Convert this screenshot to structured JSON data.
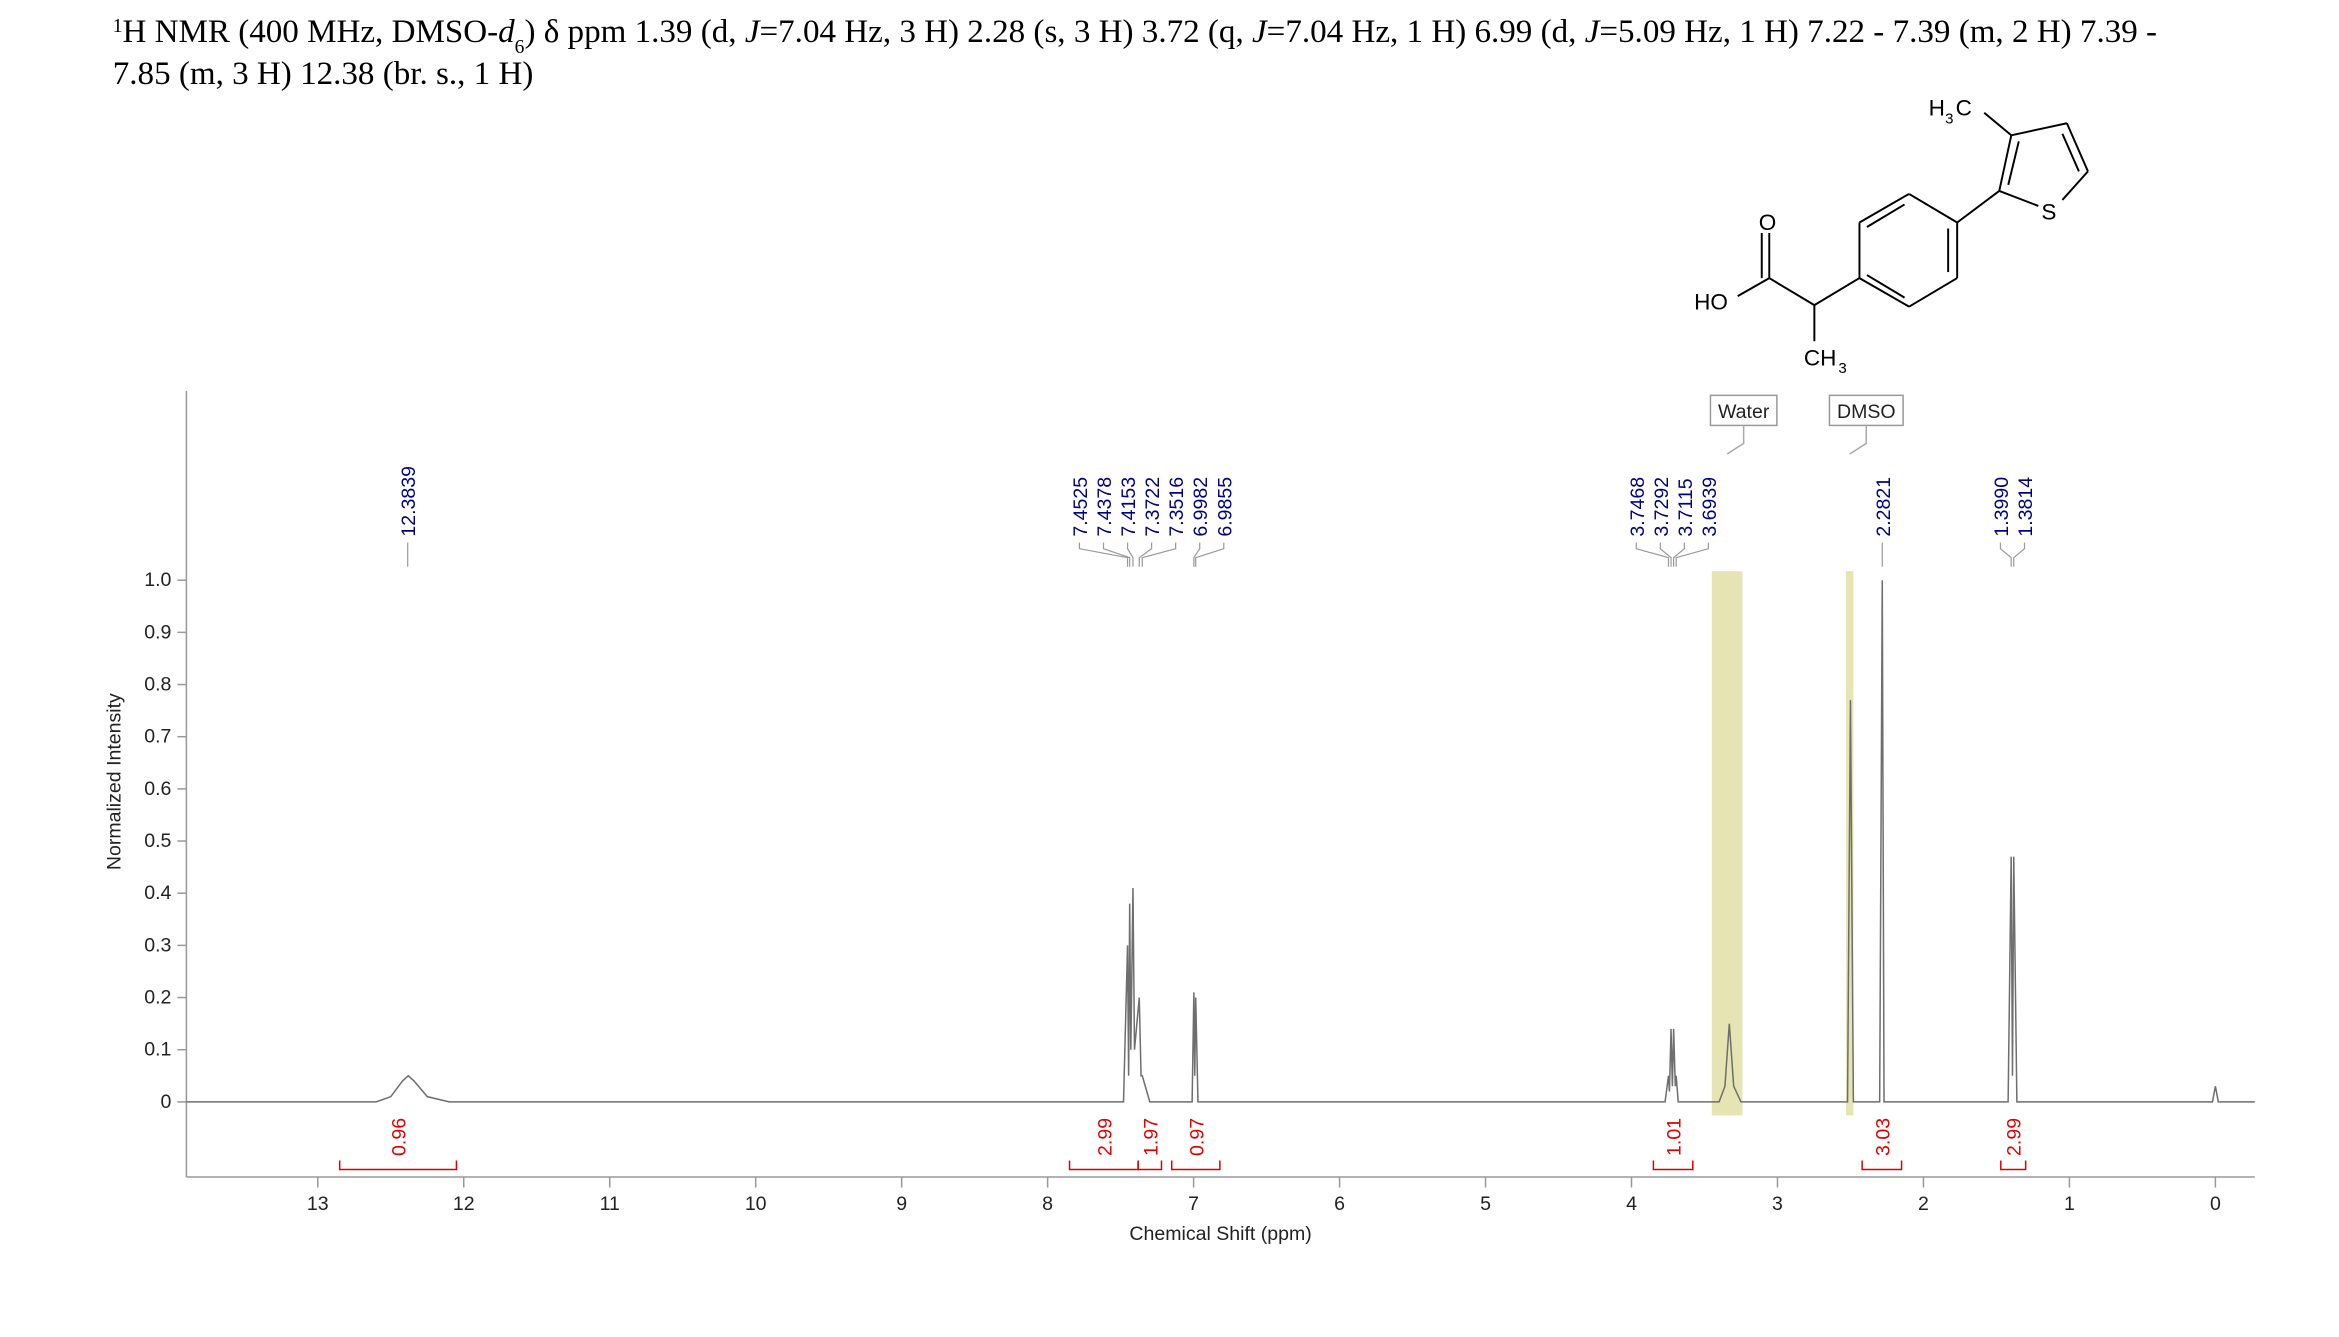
{
  "chart_data": {
    "type": "line",
    "title": [
      "1",
      "H NMR (400 MHz, DMSO-",
      "d",
      "6",
      ") δ ppm 1.39 (d, ",
      "J",
      "=7.04 Hz, 3 H) 2.28 (s, 3 H) 3.72 (q, ",
      "J",
      "=7.04 Hz, 1 H) 6.99 (d, ",
      "J",
      "=5.09 Hz, 1 H) 7.22 - 7.39 (m, 2 H) 7.39 -",
      "7.85 (m, 3 H) 12.38 (br. s., 1 H)"
    ],
    "structure_labels": [
      "H",
      "3",
      "C",
      "O",
      "HO",
      "S",
      "CH",
      "3"
    ],
    "x_label": "Chemical Shift (ppm)",
    "y_label": "Normalized Intensity",
    "xlim": [
      13.9,
      -0.27
    ],
    "xticks": [
      13,
      12,
      11,
      10,
      9,
      8,
      7,
      6,
      5,
      4,
      3,
      2,
      1,
      0
    ],
    "ylim": [
      -0.144,
      1.363
    ],
    "yticks": [
      0,
      0.1,
      0.2,
      0.3,
      0.4,
      0.5,
      0.6,
      0.7,
      0.8,
      0.9,
      {
        "value": 1,
        "label": "1.0"
      }
    ],
    "x": [
      13.9,
      12.6,
      12.5,
      12.42,
      12.38,
      12.34,
      12.25,
      12.1,
      7.48,
      7.4525,
      7.445,
      7.4378,
      7.43,
      7.4153,
      7.405,
      7.3722,
      7.36,
      7.3516,
      7.3,
      7.01,
      6.9982,
      6.992,
      6.9855,
      6.97,
      3.77,
      3.7468,
      3.74,
      3.7292,
      3.72,
      3.7115,
      3.7,
      3.6939,
      3.68,
      3.4,
      3.36,
      3.33,
      3.3,
      3.25,
      2.52,
      2.5,
      2.48,
      2.3,
      2.2821,
      2.27,
      1.42,
      1.399,
      1.39,
      1.3814,
      1.36,
      0.02,
      0,
      -0.02,
      -0.27
    ],
    "series": [
      {
        "color": "#6e6e6e",
        "values": [
          0,
          0,
          0.01,
          0.04,
          0.05,
          0.04,
          0.01,
          0,
          0,
          0.3,
          0.05,
          0.38,
          0.1,
          0.41,
          0.1,
          0.2,
          0.05,
          0.05,
          0,
          0,
          0.21,
          0.05,
          0.2,
          0,
          0,
          0.05,
          0.02,
          0.14,
          0.03,
          0.14,
          0.03,
          0.05,
          0,
          0,
          0.03,
          0.15,
          0.03,
          0,
          0,
          0.77,
          0,
          0,
          1.0,
          0,
          0,
          0.47,
          0.05,
          0.47,
          0,
          0,
          0.03,
          0,
          0
        ]
      }
    ],
    "peaks": [
      12.3839,
      7.4525,
      7.4378,
      7.4153,
      7.3722,
      7.3516,
      6.9982,
      6.9855,
      3.7468,
      3.7292,
      3.7115,
      3.6939,
      2.2821,
      {
        "value": 1.399,
        "label": "1.3990"
      },
      1.3814
    ],
    "peak_color": "#000080",
    "integrals": [
      {
        "range": [
          12.85,
          12.05
        ],
        "value": 0.96
      },
      {
        "range": [
          7.85,
          7.38
        ],
        "value": 2.99
      },
      {
        "range": [
          7.38,
          7.22
        ],
        "value": 1.97
      },
      {
        "range": [
          7.15,
          6.82
        ],
        "value": 0.97
      },
      {
        "range": [
          3.85,
          3.58
        ],
        "value": 1.01
      },
      {
        "range": [
          2.42,
          2.15
        ],
        "value": 3.03
      },
      {
        "range": [
          1.47,
          1.3
        ],
        "value": 2.99
      }
    ],
    "integral_color": "#e00000",
    "solvent_regions": [
      {
        "label": "Water",
        "range": [
          3.45,
          3.24
        ]
      },
      {
        "label": "DMSO",
        "range": [
          2.53,
          2.48
        ]
      }
    ],
    "solvent_color": "#e5e4b2"
  }
}
